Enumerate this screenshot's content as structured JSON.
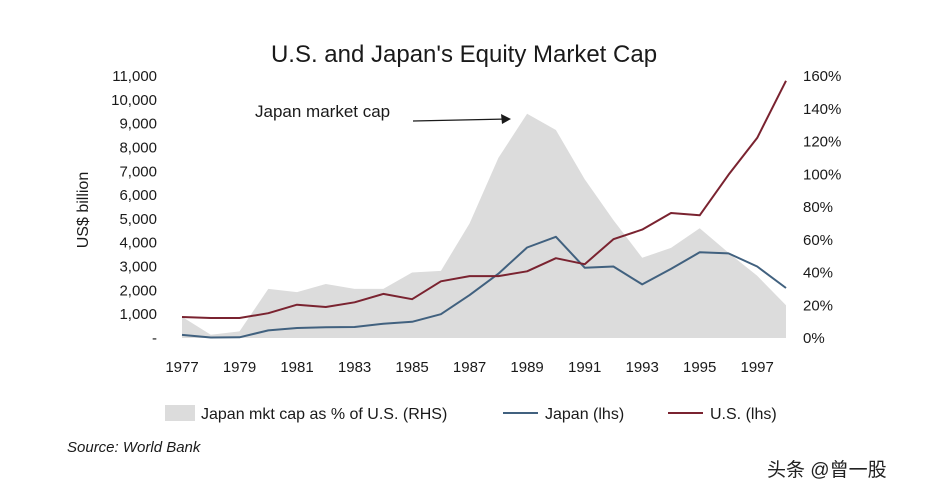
{
  "chart_data": {
    "type": "line",
    "title": "U.S. and Japan's Equity Market Cap",
    "ylabel": "US$ billion",
    "x": [
      1977,
      1978,
      1979,
      1980,
      1981,
      1982,
      1983,
      1984,
      1985,
      1986,
      1987,
      1988,
      1989,
      1990,
      1991,
      1992,
      1993,
      1994,
      1995,
      1996,
      1997,
      1998
    ],
    "x_tick_labels": [
      "1977",
      "1979",
      "1981",
      "1983",
      "1985",
      "1987",
      "1989",
      "1991",
      "1993",
      "1995",
      "1997"
    ],
    "y_left": {
      "range": [
        0,
        11000
      ],
      "tick_values": [
        0,
        1000,
        2000,
        3000,
        4000,
        5000,
        6000,
        7000,
        8000,
        9000,
        10000,
        11000
      ],
      "tick_labels": [
        "-",
        "1,000",
        "2,000",
        "3,000",
        "4,000",
        "5,000",
        "6,000",
        "7,000",
        "8,000",
        "9,000",
        "10,000",
        "11,000"
      ]
    },
    "y_right": {
      "range": [
        0,
        160
      ],
      "tick_values": [
        0,
        20,
        40,
        60,
        80,
        100,
        120,
        140,
        160
      ],
      "tick_labels": [
        "0%",
        "20%",
        "40%",
        "60%",
        "80%",
        "100%",
        "120%",
        "140%",
        "160%"
      ]
    },
    "series": [
      {
        "name": "Japan mkt cap as % of U.S. (RHS)",
        "kind": "area",
        "axis": "right",
        "color": "#dcdcdc",
        "values": [
          13,
          2,
          4,
          30,
          28,
          33,
          30,
          30,
          40,
          41,
          70,
          110,
          137,
          127,
          97,
          72,
          49,
          55,
          67,
          52,
          38,
          20
        ]
      },
      {
        "name": "Japan (lhs)",
        "kind": "line",
        "axis": "left",
        "color": "#41617f",
        "values": [
          130,
          20,
          30,
          320,
          420,
          450,
          460,
          600,
          680,
          1000,
          1800,
          2700,
          3800,
          4250,
          2950,
          3000,
          2250,
          2900,
          3600,
          3550,
          3000,
          2100
        ]
      },
      {
        "name": "U.S. (lhs)",
        "kind": "line",
        "axis": "left",
        "color": "#7a2330",
        "values": [
          880,
          840,
          840,
          1040,
          1400,
          1300,
          1500,
          1850,
          1630,
          2380,
          2600,
          2600,
          2800,
          3350,
          3100,
          4150,
          4550,
          5250,
          5150,
          6850,
          8400,
          10800
        ]
      }
    ],
    "legend": [
      "Japan mkt cap as % of U.S. (RHS)",
      "Japan (lhs)",
      "U.S. (lhs)"
    ],
    "legend_position": "bottom",
    "annotation": {
      "text": "Japan market cap",
      "target_year": 1988.7,
      "target_value_pct": 137
    }
  },
  "source": "Source: World Bank",
  "watermark": "头条 @曾一股"
}
